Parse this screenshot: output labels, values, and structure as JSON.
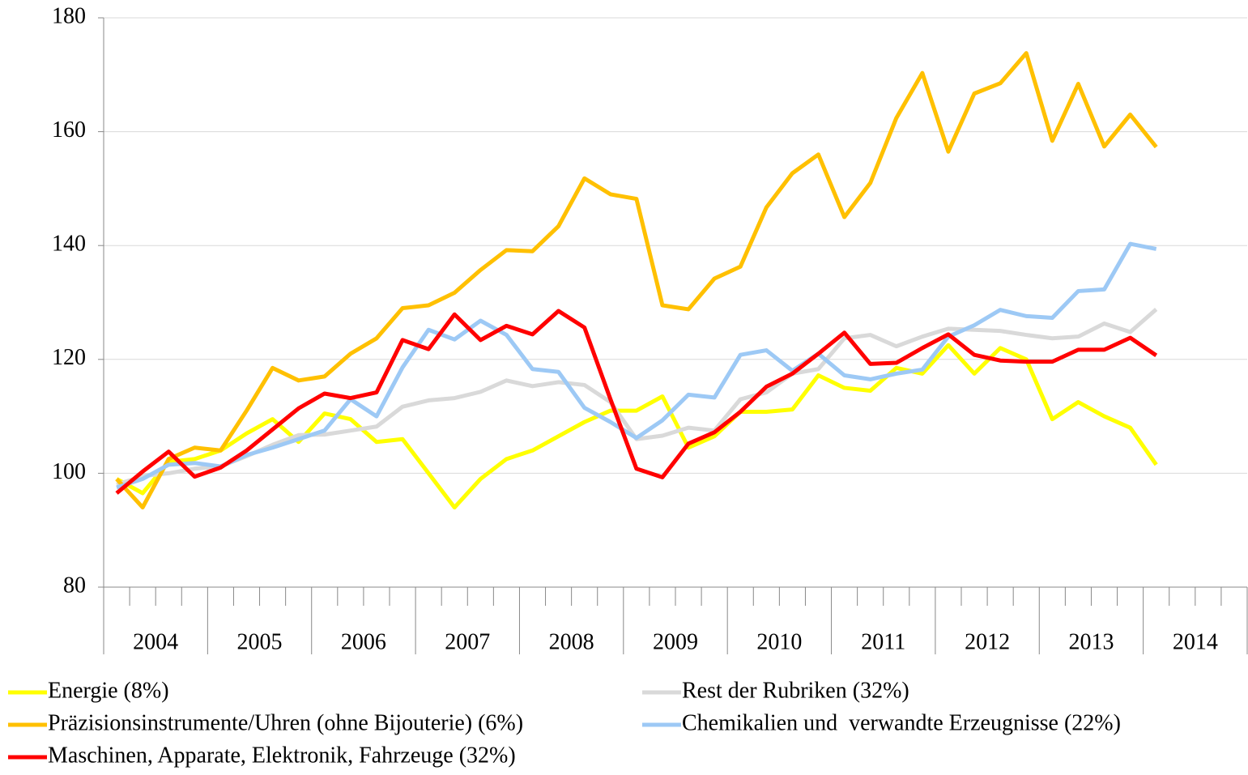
{
  "chart_data": {
    "type": "line",
    "categories": [
      null,
      null,
      null,
      null,
      null,
      null,
      null,
      null,
      null,
      null,
      null,
      null,
      null,
      null,
      null,
      null,
      null,
      null,
      null,
      null,
      null,
      null,
      null,
      null,
      null,
      null,
      null,
      null,
      null,
      null,
      null,
      null,
      null,
      null,
      null,
      null,
      null,
      null,
      null,
      null,
      null,
      null,
      null,
      null
    ],
    "year_labels": [
      "2004",
      "2005",
      "2006",
      "2007",
      "2008",
      "2009",
      "2010",
      "2011",
      "2012",
      "2013",
      "2014"
    ],
    "ylim": [
      80,
      180
    ],
    "yticks": [
      80,
      100,
      120,
      140,
      160,
      180
    ],
    "grid": true,
    "series": [
      {
        "name": "Energie (8%)",
        "color": "#ffff00",
        "values": [
          99,
          96.5,
          102,
          102.5,
          104,
          107,
          109.5,
          105.5,
          110.5,
          109.5,
          105.5,
          106,
          100,
          94,
          99,
          102.5,
          104,
          106.5,
          109,
          111,
          111,
          113.5,
          104.5,
          106.5,
          110.8,
          110.8,
          111.2,
          117.2,
          115,
          114.5,
          118.5,
          117.5,
          122.5,
          117.5,
          122,
          120,
          109.5,
          112.5,
          110,
          108,
          101.5,
          null,
          null,
          null
        ]
      },
      {
        "name": "Rest der Rubriken (32%)",
        "color": "#d9d9d9",
        "values": [
          98,
          99.5,
          100,
          100.8,
          101.2,
          103,
          105,
          106.7,
          106.8,
          107.5,
          108.2,
          111.7,
          112.8,
          113.2,
          114.3,
          116.3,
          115.3,
          116,
          115.5,
          112.5,
          106,
          106.6,
          108,
          107.5,
          113,
          114.2,
          117.5,
          118.3,
          123.7,
          124.3,
          122.3,
          124,
          125.4,
          125.2,
          125,
          124.3,
          123.7,
          124,
          126.3,
          124.8,
          128.8,
          null,
          null,
          null
        ]
      },
      {
        "name": "Präzisionsinstrumente/Uhren (ohne Bijouterie) (6%)",
        "color": "#ffc000",
        "values": [
          99,
          94,
          102.5,
          104.5,
          104,
          111,
          118.5,
          116.3,
          117,
          121,
          123.7,
          129,
          129.5,
          131.7,
          135.7,
          139.2,
          139,
          143.4,
          151.8,
          149,
          148.2,
          129.5,
          128.8,
          134.2,
          136.3,
          146.7,
          152.7,
          156,
          145,
          151,
          162.4,
          170.3,
          156.5,
          166.7,
          168.5,
          173.8,
          158.4,
          168.4,
          157.4,
          163,
          157.3,
          null,
          null,
          null
        ]
      },
      {
        "name": "Chemikalien und  verwandte Erzeugnisse (22%)",
        "color": "#9dc9f5",
        "values": [
          97.5,
          99,
          101.5,
          101.8,
          101.2,
          103.2,
          104.5,
          106,
          107.5,
          113,
          110,
          118.6,
          125.2,
          123.5,
          126.8,
          124.3,
          118.3,
          117.8,
          111.5,
          109,
          106.2,
          109.3,
          113.8,
          113.3,
          120.8,
          121.6,
          118,
          121,
          117.2,
          116.5,
          117.5,
          118.2,
          124,
          126,
          128.7,
          127.6,
          127.3,
          132,
          132.3,
          140.3,
          139.4,
          null,
          null,
          null
        ]
      },
      {
        "name": "Maschinen, Apparate, Elektronik, Fahrzeuge (32%)",
        "color": "#ff0000",
        "values": [
          96.5,
          100.3,
          103.8,
          99.4,
          101,
          104,
          107.7,
          111.4,
          114,
          113.2,
          114.2,
          123.4,
          121.8,
          127.9,
          123.4,
          125.9,
          124.4,
          128.5,
          125.6,
          113,
          100.8,
          99.3,
          105.2,
          107.2,
          110.8,
          115.2,
          117.5,
          121,
          124.7,
          119.2,
          119.4,
          122,
          124.4,
          120.8,
          119.8,
          119.6,
          119.6,
          121.7,
          121.7,
          123.8,
          120.7,
          null,
          null,
          null
        ]
      }
    ]
  }
}
